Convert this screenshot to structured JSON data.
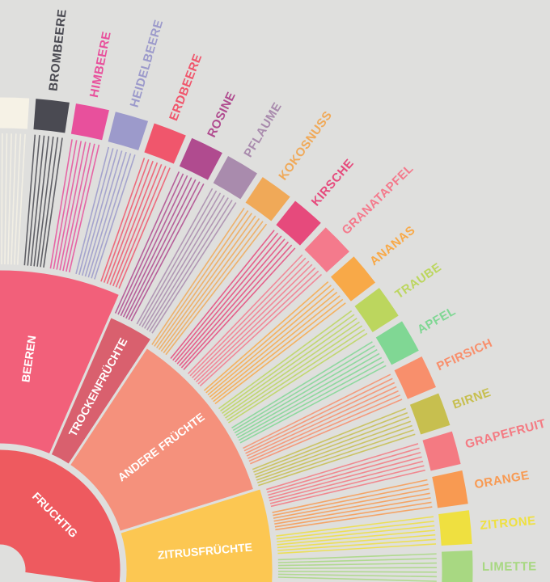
{
  "center": {
    "label": "FRUCHTIG",
    "color": "#ee5a5f"
  },
  "groups": [
    {
      "label": "BEEREN",
      "color": "#f2607a",
      "items": [
        {
          "color": "#f6f2e6"
        },
        {
          "label": "BROMBEERE",
          "color": "#4a4a52"
        },
        {
          "label": "HIMBEERE",
          "color": "#e8509c"
        },
        {
          "label": "HEIDELBEERE",
          "color": "#9c9acb"
        },
        {
          "label": "ERDBEERE",
          "color": "#f0566c"
        }
      ]
    },
    {
      "label": "TROCKENFRÜCHTE",
      "color": "#d9606e",
      "items": [
        {
          "label": "ROSINE",
          "color": "#b04b8f"
        },
        {
          "label": "PFLAUME",
          "color": "#a98bad"
        }
      ]
    },
    {
      "label": "ANDERE FRÜCHTE",
      "color": "#f5917c",
      "items": [
        {
          "label": "KOKOSNUSS",
          "color": "#f0a958"
        },
        {
          "label": "KIRSCHE",
          "color": "#e64a7c"
        },
        {
          "label": "GRANATAPFEL",
          "color": "#f47a8c"
        },
        {
          "label": "ANANAS",
          "color": "#f8a948"
        },
        {
          "label": "TRAUBE",
          "color": "#bcd65e"
        },
        {
          "label": "APFEL",
          "color": "#80d794"
        },
        {
          "label": "PFIRSICH",
          "color": "#f88f6c"
        },
        {
          "label": "BIRNE",
          "color": "#c7bf4f"
        }
      ]
    },
    {
      "label": "ZITRUSFRÜCHTE",
      "color": "#fcc752",
      "items": [
        {
          "label": "GRAPEFRUIT",
          "color": "#f47a82"
        },
        {
          "label": "ORANGE",
          "color": "#f89a52"
        },
        {
          "label": "ZITRONE",
          "color": "#efe040"
        },
        {
          "label": "LIMETTE",
          "color": "#a8d882"
        }
      ]
    }
  ]
}
